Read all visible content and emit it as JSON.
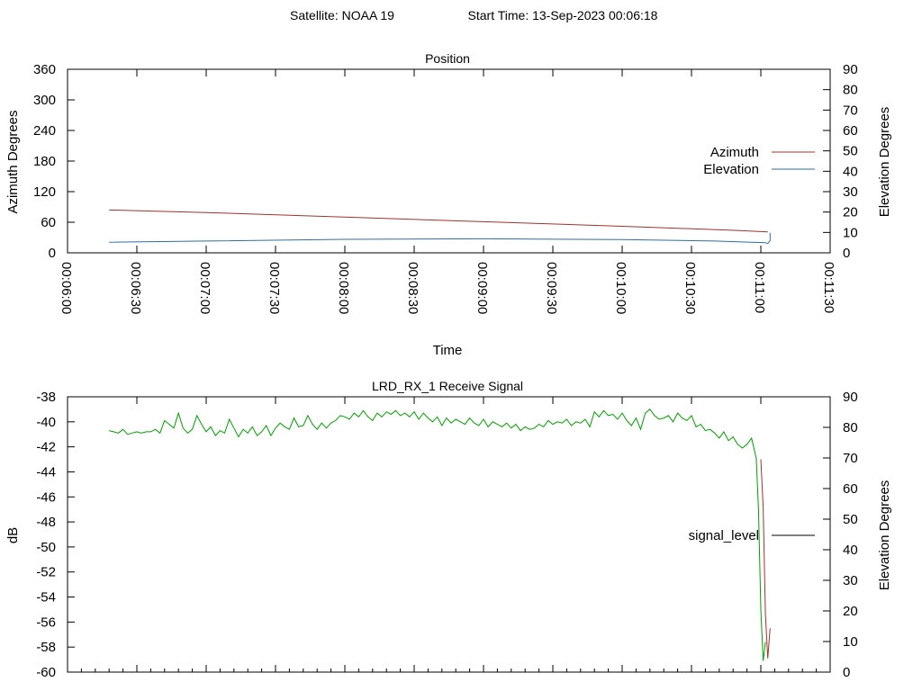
{
  "header": {
    "satellite": "Satellite: NOAA 19",
    "start_time": "Start Time: 13-Sep-2023 00:06:18"
  },
  "chart_data": [
    {
      "type": "line",
      "title": "Position",
      "xlabel": "Time",
      "ylabel": "Azimuth Degrees",
      "y2label": "Elevation Degrees",
      "xlim": [
        360,
        690
      ],
      "ylim": [
        0,
        360
      ],
      "y2lim": [
        0,
        90
      ],
      "x_tick_labels": [
        "00:06:00",
        "00:06:30",
        "00:07:00",
        "00:07:30",
        "00:08:00",
        "00:08:30",
        "00:09:00",
        "00:09:30",
        "00:10:00",
        "00:10:30",
        "00:11:00",
        "00:11:30"
      ],
      "x_tick_values": [
        360,
        390,
        420,
        450,
        480,
        510,
        540,
        570,
        600,
        630,
        660,
        690
      ],
      "y_ticks": [
        0,
        60,
        120,
        180,
        240,
        300,
        360
      ],
      "y2_ticks": [
        0,
        10,
        20,
        30,
        40,
        50,
        60,
        70,
        80,
        90
      ],
      "legend_position": "right",
      "series": [
        {
          "name": "Azimuth",
          "color": "#a0322d",
          "axis": "y",
          "x": [
            378,
            420,
            480,
            540,
            600,
            650,
            663
          ],
          "values": [
            84,
            79,
            70,
            61,
            52,
            44,
            41
          ]
        },
        {
          "name": "Elevation",
          "color": "#2f6e9e",
          "axis": "y2",
          "x": [
            378,
            420,
            480,
            540,
            600,
            640,
            662,
            663,
            664,
            664
          ],
          "values": [
            5.2,
            5.8,
            6.6,
            6.9,
            6.5,
            5.8,
            5.0,
            4.6,
            6.0,
            9.8
          ]
        }
      ]
    },
    {
      "type": "line",
      "title": "LRD_RX_1 Receive Signal",
      "ylabel": "dB",
      "y2label": "Elevation Degrees",
      "xlim": [
        360,
        690
      ],
      "ylim": [
        -60,
        -38
      ],
      "y2lim": [
        0,
        90
      ],
      "x_tick_values": [
        360,
        390,
        420,
        450,
        480,
        510,
        540,
        570,
        600,
        630,
        660,
        690
      ],
      "y_ticks": [
        -60,
        -58,
        -56,
        -54,
        -52,
        -50,
        -48,
        -46,
        -44,
        -42,
        -40,
        -38
      ],
      "y2_ticks": [
        0,
        10,
        20,
        30,
        40,
        50,
        60,
        70,
        80,
        90
      ],
      "legend_position": "right",
      "series": [
        {
          "name": "signal_level",
          "color": "#00a000",
          "axis": "y",
          "x": [
            378,
            380,
            382,
            384,
            386,
            388,
            390,
            392,
            394,
            396,
            398,
            400,
            402,
            404,
            406,
            408,
            410,
            412,
            414,
            416,
            418,
            420,
            422,
            424,
            426,
            428,
            430,
            432,
            434,
            436,
            438,
            440,
            442,
            444,
            446,
            448,
            450,
            452,
            454,
            456,
            458,
            460,
            462,
            464,
            466,
            468,
            470,
            472,
            474,
            476,
            478,
            480,
            482,
            484,
            486,
            488,
            490,
            492,
            494,
            496,
            498,
            500,
            502,
            504,
            506,
            508,
            510,
            512,
            514,
            516,
            518,
            520,
            522,
            524,
            526,
            528,
            530,
            532,
            534,
            536,
            538,
            540,
            542,
            544,
            546,
            548,
            550,
            552,
            554,
            556,
            558,
            560,
            562,
            564,
            566,
            568,
            570,
            572,
            574,
            576,
            578,
            580,
            582,
            584,
            586,
            588,
            590,
            592,
            594,
            596,
            598,
            600,
            602,
            604,
            606,
            608,
            610,
            612,
            614,
            616,
            618,
            620,
            622,
            624,
            626,
            628,
            630,
            632,
            634,
            636,
            638,
            640,
            642,
            644,
            646,
            648,
            650,
            652,
            654,
            656,
            658,
            659,
            660,
            661,
            662
          ],
          "values": [
            -40.7,
            -40.8,
            -40.9,
            -40.6,
            -41.0,
            -40.9,
            -40.8,
            -40.9,
            -40.8,
            -40.8,
            -40.6,
            -40.9,
            -39.9,
            -40.2,
            -40.5,
            -39.3,
            -40.5,
            -40.9,
            -40.6,
            -39.5,
            -40.2,
            -40.8,
            -40.4,
            -41.1,
            -40.7,
            -40.9,
            -39.8,
            -40.5,
            -41.2,
            -40.6,
            -40.9,
            -40.4,
            -41.1,
            -40.8,
            -40.3,
            -41.1,
            -40.5,
            -40.1,
            -40.4,
            -40.6,
            -39.7,
            -40.4,
            -40.3,
            -39.5,
            -40.2,
            -40.6,
            -40.1,
            -40.5,
            -40.1,
            -39.9,
            -39.5,
            -39.6,
            -39.8,
            -39.3,
            -39.6,
            -39.1,
            -39.6,
            -39.9,
            -39.3,
            -39.6,
            -39.2,
            -39.4,
            -39.1,
            -39.5,
            -39.3,
            -39.6,
            -39.2,
            -39.8,
            -39.3,
            -39.7,
            -40.0,
            -39.6,
            -40.3,
            -39.7,
            -40.1,
            -39.8,
            -40.0,
            -40.2,
            -39.7,
            -40.1,
            -40.3,
            -39.8,
            -40.4,
            -40.0,
            -40.2,
            -40.4,
            -40.1,
            -40.5,
            -40.2,
            -40.7,
            -40.4,
            -40.6,
            -40.5,
            -40.2,
            -40.4,
            -39.9,
            -40.2,
            -40.0,
            -40.1,
            -39.8,
            -40.3,
            -40.0,
            -40.1,
            -39.8,
            -40.4,
            -39.2,
            -39.6,
            -39.1,
            -39.5,
            -39.4,
            -39.8,
            -39.3,
            -39.9,
            -40.3,
            -39.7,
            -40.6,
            -39.3,
            -39.0,
            -39.5,
            -39.8,
            -39.7,
            -39.5,
            -40.0,
            -39.3,
            -39.7,
            -39.9,
            -39.5,
            -40.4,
            -40.2,
            -40.7,
            -40.6,
            -40.9,
            -41.3,
            -40.8,
            -41.5,
            -41.2,
            -41.8,
            -42.1,
            -41.8,
            -41.3,
            -42.9,
            -47.0,
            -55.0,
            -59.1,
            -57.6
          ]
        },
        {
          "name": "",
          "color": "#a0322d",
          "axis": "y",
          "x": [
            660,
            661,
            662,
            663,
            664
          ],
          "values": [
            -43.0,
            -46.8,
            -55.4,
            -58.9,
            -56.5
          ]
        }
      ]
    }
  ],
  "legend_line_color": "#000000"
}
